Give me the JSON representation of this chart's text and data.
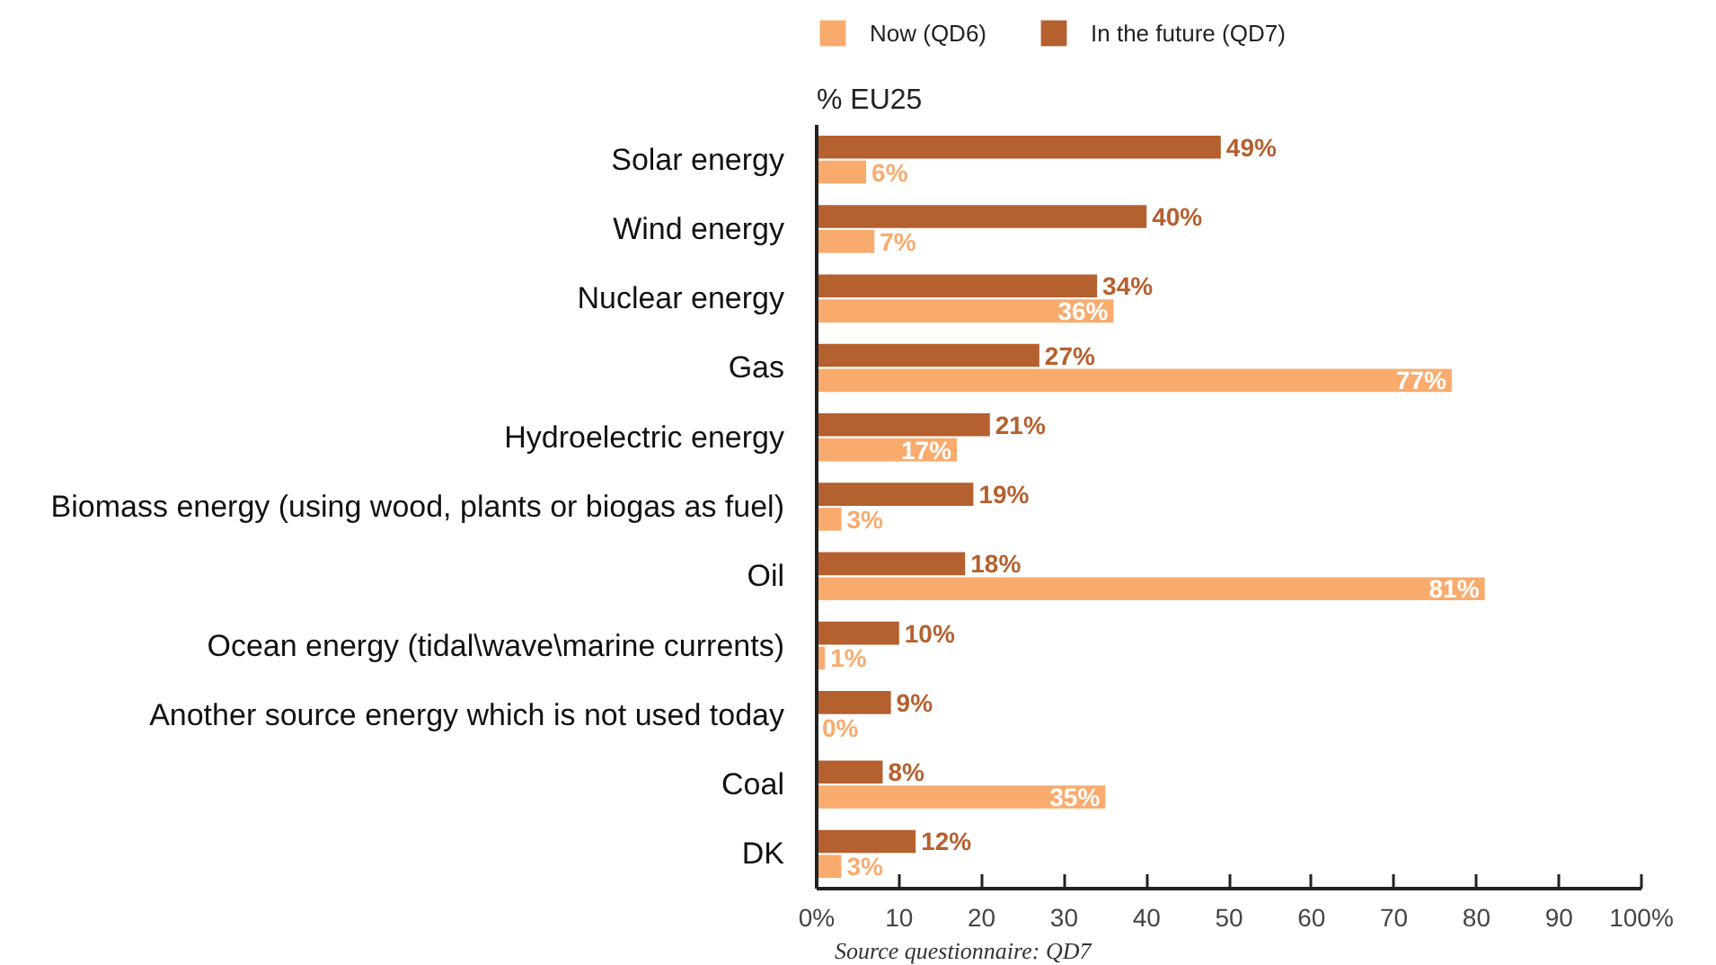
{
  "chart_data": {
    "type": "bar",
    "orientation": "horizontal",
    "xlabel": "% EU25",
    "categories": [
      "Solar energy",
      "Wind energy",
      "Nuclear energy",
      "Gas",
      "Hydroelectric energy",
      "Biomass energy (using wood, plants or biogas as fuel)",
      "Oil",
      "Ocean energy (tidal\\wave\\marine currents)",
      "Another source energy which is not used today",
      "Coal",
      "DK"
    ],
    "series": [
      {
        "name": "Now (QD6)",
        "color": "#f9ab6d",
        "values": [
          6,
          7,
          36,
          77,
          17,
          3,
          81,
          1,
          0,
          35,
          3
        ],
        "value_labels": [
          "6%",
          "7%",
          "36%",
          "77%",
          "17%",
          "3%",
          "81%",
          "1%",
          "0%",
          "35%",
          "3%"
        ]
      },
      {
        "name": "In the future (QD7)",
        "color": "#b5602f",
        "values": [
          49,
          40,
          34,
          27,
          21,
          19,
          18,
          10,
          9,
          8,
          12
        ],
        "value_labels": [
          "49%",
          "40%",
          "34%",
          "27%",
          "21%",
          "19%",
          "18%",
          "10%",
          "9%",
          "8%",
          "12%"
        ]
      }
    ],
    "xlim": [
      0,
      100
    ],
    "xticks": [
      {
        "value": 0,
        "label": "0%"
      },
      10,
      20,
      30,
      40,
      50,
      60,
      70,
      80,
      90,
      {
        "value": 100,
        "label": "100%"
      }
    ],
    "grid": false,
    "legend": "top",
    "annotations": [
      "Source questionnaire: QD7"
    ]
  }
}
